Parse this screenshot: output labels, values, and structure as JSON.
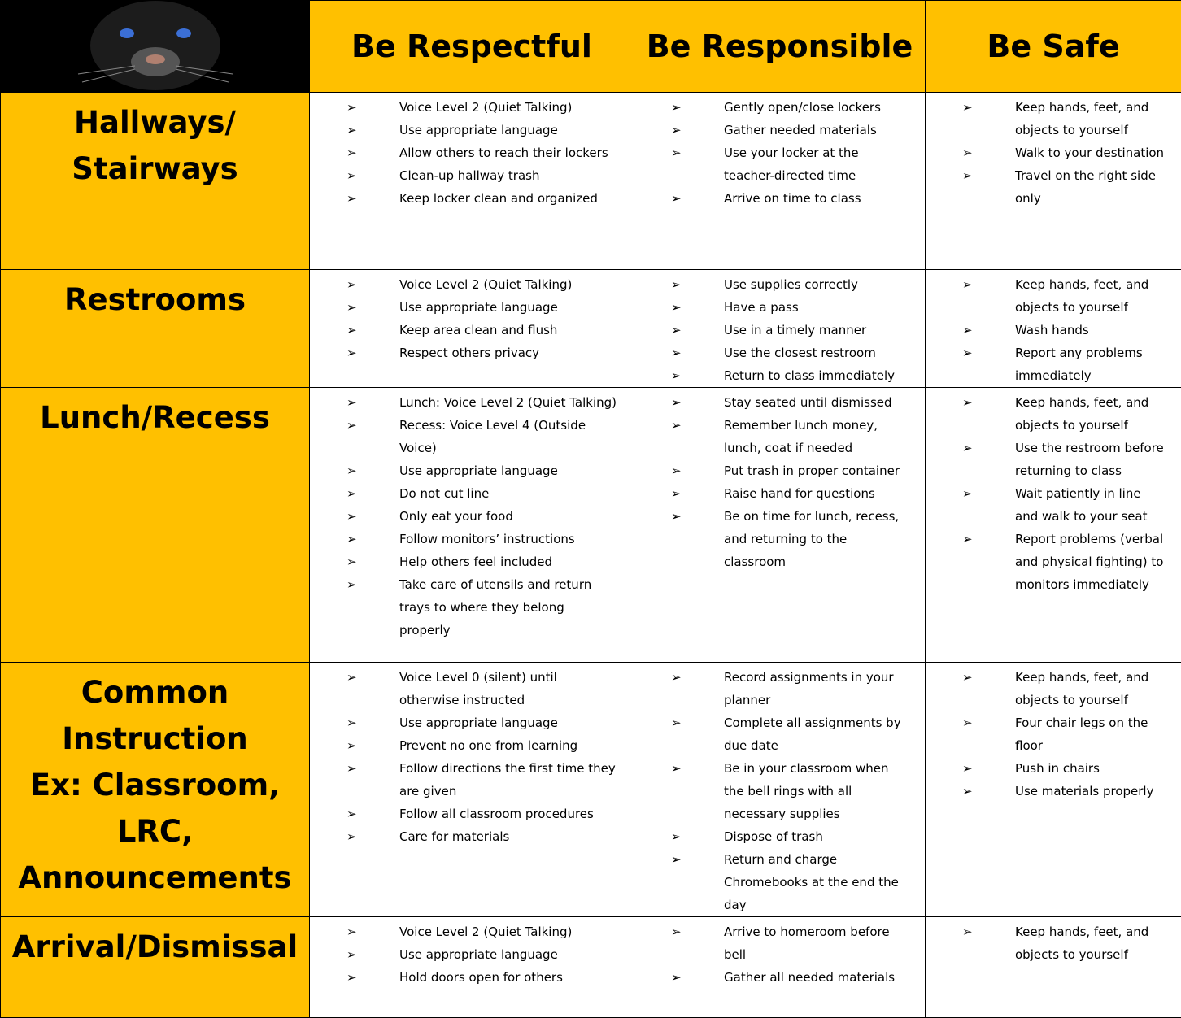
{
  "header": {
    "columns": [
      "Be Respectful",
      "Be Responsible",
      "Be Safe"
    ]
  },
  "rows": [
    {
      "label": [
        "Hallways/",
        "Stairways"
      ],
      "cells": [
        [
          "Voice Level 2 (Quiet Talking)",
          "Use appropriate language",
          "Allow others to reach their lockers",
          "Clean-up hallway trash",
          "Keep locker clean and organized"
        ],
        [
          "Gently open/close lockers",
          "Gather needed materials",
          "Use your locker at the teacher-directed time",
          "Arrive on time to class"
        ],
        [
          "Keep hands, feet, and objects to yourself",
          "Walk to your destination",
          "Travel on the right side only"
        ]
      ]
    },
    {
      "label": [
        "Restrooms"
      ],
      "cells": [
        [
          "Voice Level 2 (Quiet Talking)",
          "Use appropriate language",
          "Keep area clean and flush",
          "Respect others privacy"
        ],
        [
          "Use supplies correctly",
          "Have a pass",
          "Use in a timely manner",
          "Use the closest restroom",
          "Return to class immediately"
        ],
        [
          "Keep hands, feet, and objects to yourself",
          "Wash hands",
          "Report any problems immediately"
        ]
      ]
    },
    {
      "label": [
        "Lunch/Recess"
      ],
      "cells": [
        [
          "Lunch: Voice Level 2 (Quiet Talking)",
          "Recess: Voice Level 4 (Outside Voice)",
          "Use appropriate language",
          "Do not cut line",
          "Only eat your food",
          "Follow monitors’ instructions",
          "Help others feel included",
          "Take care of utensils and return trays to where they belong properly"
        ],
        [
          "Stay seated until dismissed",
          "Remember lunch money, lunch, coat if needed",
          "Put trash in proper container",
          "Raise hand for questions",
          "Be on time for lunch, recess, and returning to the classroom"
        ],
        [
          "Keep hands, feet, and objects to yourself",
          "Use the restroom before returning to class",
          "Wait patiently in line and walk to your seat",
          "Report problems (verbal and physical fighting) to monitors immediately"
        ]
      ]
    },
    {
      "label": [
        "Common",
        "Instruction",
        "Ex:  Classroom,",
        "LRC,",
        "Announcements"
      ],
      "cells": [
        [
          "Voice Level 0 (silent) until otherwise instructed",
          "Use appropriate language",
          "Prevent no one from learning",
          "Follow directions the first time they are given",
          "Follow all classroom procedures",
          "Care for materials"
        ],
        [
          "Record assignments in your planner",
          "Complete all assignments by due date",
          "Be in your classroom when the bell rings with all necessary supplies",
          "Dispose of trash",
          "Return and charge Chromebooks at the end the day"
        ],
        [
          "Keep hands, feet, and objects to yourself",
          "Four chair legs on the floor",
          "Push in chairs",
          "Use materials properly"
        ]
      ]
    },
    {
      "label": [
        "Arrival/Dismissal"
      ],
      "cells": [
        [
          "Voice Level 2 (Quiet Talking)",
          "Use appropriate language",
          "Hold doors open for others"
        ],
        [
          "Arrive to homeroom before bell",
          "Gather all needed materials"
        ],
        [
          "Keep hands, feet, and objects to yourself"
        ]
      ]
    }
  ]
}
